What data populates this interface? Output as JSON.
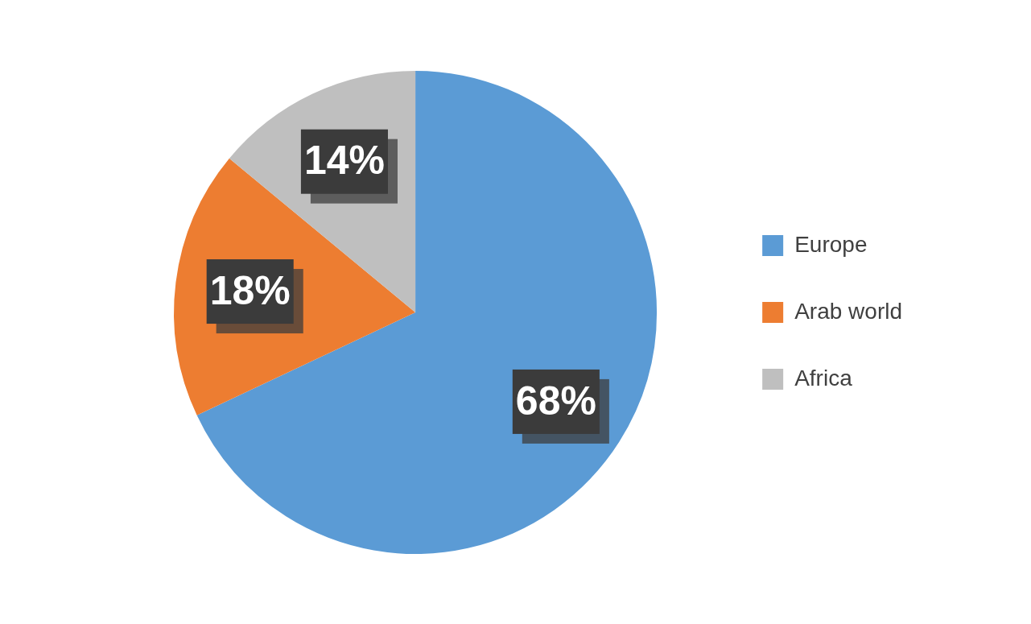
{
  "chart_data": {
    "type": "pie",
    "categories": [
      "Europe",
      "Arab world",
      "Africa"
    ],
    "values": [
      68,
      18,
      14
    ],
    "value_labels": [
      "68%",
      "18%",
      "14%"
    ],
    "colors": [
      "#5b9bd5",
      "#ed7d31",
      "#bfbfbf"
    ],
    "data_labels": true,
    "legend": "right"
  }
}
